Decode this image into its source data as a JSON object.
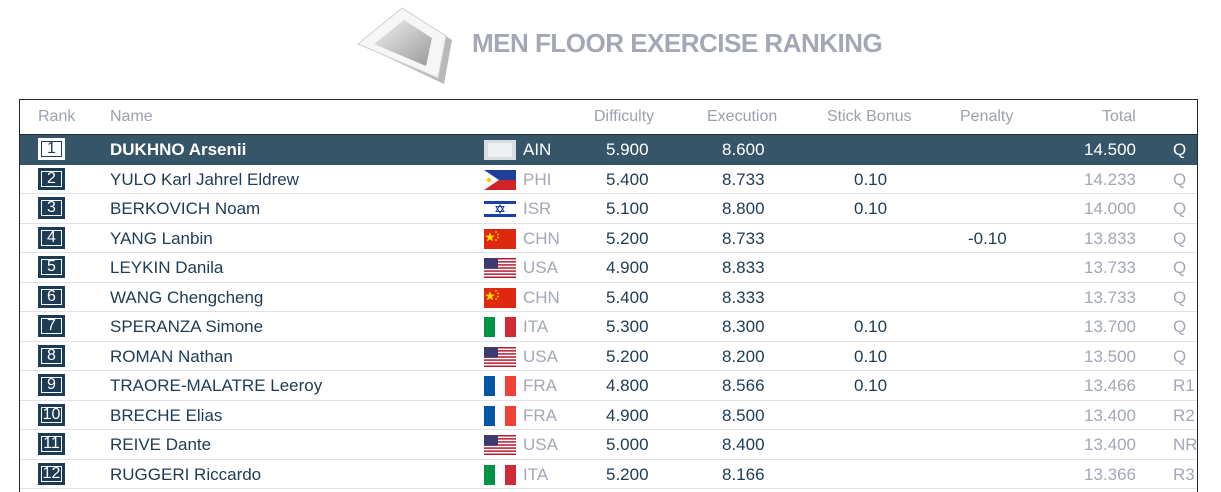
{
  "header": {
    "title": "MEN FLOOR EXERCISE RANKING",
    "logo_icon": "floor-mat-icon"
  },
  "columns": {
    "rank": "Rank",
    "name": "Name",
    "difficulty": "Difficulty",
    "execution": "Execution",
    "stick_bonus": "Stick Bonus",
    "penalty": "Penalty",
    "total": "Total"
  },
  "colors": {
    "header_text": "#a3a7b6",
    "selected_row": "#375569",
    "navy": "#1d3b55"
  },
  "rows": [
    {
      "rank": "1",
      "name": "DUKHNO Arsenii",
      "flag": "ain",
      "noc": "AIN",
      "difficulty": "5.900",
      "execution": "8.600",
      "stick_bonus": "",
      "penalty": "",
      "total": "14.500",
      "qual": "Q",
      "selected": true
    },
    {
      "rank": "2",
      "name": "YULO Karl Jahrel Eldrew",
      "flag": "phi",
      "noc": "PHI",
      "difficulty": "5.400",
      "execution": "8.733",
      "stick_bonus": "0.10",
      "penalty": "",
      "total": "14.233",
      "qual": "Q"
    },
    {
      "rank": "3",
      "name": "BERKOVICH Noam",
      "flag": "isr",
      "noc": "ISR",
      "difficulty": "5.100",
      "execution": "8.800",
      "stick_bonus": "0.10",
      "penalty": "",
      "total": "14.000",
      "qual": "Q"
    },
    {
      "rank": "4",
      "name": "YANG Lanbin",
      "flag": "chn",
      "noc": "CHN",
      "difficulty": "5.200",
      "execution": "8.733",
      "stick_bonus": "",
      "penalty": "-0.10",
      "total": "13.833",
      "qual": "Q"
    },
    {
      "rank": "5",
      "name": "LEYKIN Danila",
      "flag": "usa",
      "noc": "USA",
      "difficulty": "4.900",
      "execution": "8.833",
      "stick_bonus": "",
      "penalty": "",
      "total": "13.733",
      "qual": "Q"
    },
    {
      "rank": "6",
      "name": "WANG Chengcheng",
      "flag": "chn",
      "noc": "CHN",
      "difficulty": "5.400",
      "execution": "8.333",
      "stick_bonus": "",
      "penalty": "",
      "total": "13.733",
      "qual": "Q"
    },
    {
      "rank": "7",
      "name": "SPERANZA Simone",
      "flag": "ita",
      "noc": "ITA",
      "difficulty": "5.300",
      "execution": "8.300",
      "stick_bonus": "0.10",
      "penalty": "",
      "total": "13.700",
      "qual": "Q"
    },
    {
      "rank": "8",
      "name": "ROMAN Nathan",
      "flag": "usa",
      "noc": "USA",
      "difficulty": "5.200",
      "execution": "8.200",
      "stick_bonus": "0.10",
      "penalty": "",
      "total": "13.500",
      "qual": "Q"
    },
    {
      "rank": "9",
      "name": "TRAORE-MALATRE Leeroy",
      "flag": "fra",
      "noc": "FRA",
      "difficulty": "4.800",
      "execution": "8.566",
      "stick_bonus": "0.10",
      "penalty": "",
      "total": "13.466",
      "qual": "R1"
    },
    {
      "rank": "10",
      "name": "BRECHE Elias",
      "flag": "fra",
      "noc": "FRA",
      "difficulty": "4.900",
      "execution": "8.500",
      "stick_bonus": "",
      "penalty": "",
      "total": "13.400",
      "qual": "R2"
    },
    {
      "rank": "11",
      "name": "REIVE Dante",
      "flag": "usa",
      "noc": "USA",
      "difficulty": "5.000",
      "execution": "8.400",
      "stick_bonus": "",
      "penalty": "",
      "total": "13.400",
      "qual": "NR"
    },
    {
      "rank": "12",
      "name": "RUGGERI Riccardo",
      "flag": "ita",
      "noc": "ITA",
      "difficulty": "5.200",
      "execution": "8.166",
      "stick_bonus": "",
      "penalty": "",
      "total": "13.366",
      "qual": "R3"
    }
  ]
}
